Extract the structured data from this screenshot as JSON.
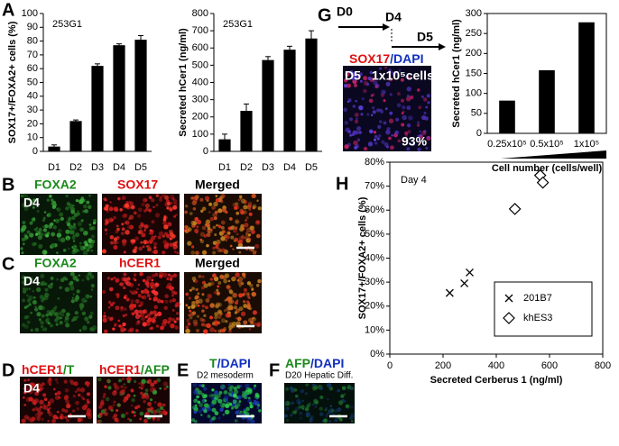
{
  "chart_data": [
    {
      "type": "bar",
      "title": "253G1",
      "y_label": "SOX17+/FOXA2+ cells (%)",
      "categories": [
        "D1",
        "D2",
        "D3",
        "D4",
        "D5"
      ],
      "values": [
        3.5,
        22,
        62,
        77,
        81
      ],
      "errors": [
        1.2,
        0.8,
        1.5,
        1,
        3
      ],
      "color": "#000000",
      "ylim": [
        0,
        100
      ],
      "yticks": [
        0,
        10,
        20,
        30,
        40,
        50,
        60,
        70,
        80,
        90,
        100
      ]
    },
    {
      "type": "bar",
      "title": "253G1",
      "y_label": "Secreted hCer1 (ng/ml)",
      "categories": [
        "D1",
        "D2",
        "D3",
        "D4",
        "D5"
      ],
      "values": [
        70,
        235,
        530,
        590,
        655
      ],
      "errors": [
        30,
        40,
        20,
        20,
        45
      ],
      "color": "#000000",
      "ylim": [
        0,
        800
      ],
      "yticks": [
        0,
        100,
        200,
        300,
        400,
        500,
        600,
        700,
        800
      ]
    },
    {
      "type": "bar",
      "y_label": "Secreted hCer1 (ng/ml)",
      "x_label": "Cell number (cells/well)",
      "categories": [
        "0.25x10⁵",
        "0.5x10⁵",
        "1x10⁵"
      ],
      "values": [
        82,
        158,
        278
      ],
      "color": "#000000",
      "ylim": [
        0,
        300
      ],
      "yticks": [
        0,
        50,
        100,
        150,
        200,
        250,
        300
      ]
    },
    {
      "type": "scatter",
      "title": "Day 4",
      "y_label": "SOX17+/FOXA2+ cells (%)",
      "x_label": "Secreted Cerberus 1 (ng/ml)",
      "series": [
        {
          "name": "201B7",
          "marker": "x",
          "color": "#000000",
          "x": [
            225,
            280,
            300
          ],
          "values": [
            25.5,
            29.5,
            34
          ]
        },
        {
          "name": "khES3",
          "marker": "diamond",
          "color": "#000000",
          "x": [
            470,
            565,
            575
          ],
          "values": [
            60.5,
            74.5,
            71.5
          ]
        }
      ],
      "xlim": [
        0,
        800
      ],
      "xticks": [
        0,
        200,
        400,
        600,
        800
      ],
      "ylim": [
        0,
        80
      ],
      "yticks": [
        {
          "value": 0,
          "label": "0%"
        },
        {
          "value": 10,
          "label": "10%"
        },
        {
          "value": 20,
          "label": "20%"
        },
        {
          "value": 30,
          "label": "30%"
        },
        {
          "value": 40,
          "label": "40%"
        },
        {
          "value": 50,
          "label": "50%"
        },
        {
          "value": 60,
          "label": "60%"
        },
        {
          "value": 70,
          "label": "70%"
        },
        {
          "value": 80,
          "label": "80%"
        }
      ],
      "legend": "lower right"
    }
  ],
  "panels": {
    "letters": [
      "A",
      "B",
      "C",
      "D",
      "E",
      "F",
      "G",
      "H"
    ],
    "B": [
      "FOXA2",
      "SOX17",
      "Merged",
      "D4"
    ],
    "C": [
      "FOXA2",
      "hCER1",
      "Merged",
      "D4"
    ],
    "D": [
      "hCER1",
      "/T",
      "hCER1",
      "/AFP",
      "D4"
    ],
    "E": [
      "T",
      "/DAPI",
      "D2 mesoderm"
    ],
    "F": [
      "AFP",
      "/DAPI",
      "D20 Hepatic Diff."
    ],
    "G": [
      "D0",
      "D4",
      "D5",
      "SOX17",
      "/DAPI",
      "D5",
      "1x10⁵cells",
      "93%"
    ]
  }
}
